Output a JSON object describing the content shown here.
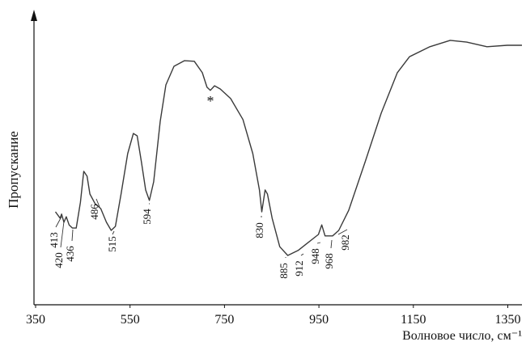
{
  "chart_data": {
    "type": "line",
    "x_label": "Волновое число, см⁻¹",
    "y_label": "Пропускание",
    "xlim": [
      350,
      1380
    ],
    "xticks": [
      350,
      550,
      750,
      950,
      1150,
      1350
    ],
    "ylim": [
      0,
      100
    ],
    "color": "#3a3a3a",
    "x": [
      392,
      402,
      405,
      410,
      415,
      421,
      428,
      436,
      445,
      452,
      459,
      465,
      476,
      488,
      500,
      510,
      519,
      531,
      545,
      557,
      565,
      574,
      583,
      591,
      600,
      614,
      626,
      643,
      665,
      686,
      703,
      713,
      720,
      729,
      741,
      763,
      789,
      810,
      824,
      829,
      836,
      841,
      851,
      867,
      884,
      906,
      927,
      949,
      956,
      963,
      979,
      992,
      1013,
      1048,
      1082,
      1116,
      1142,
      1185,
      1228,
      1263,
      1306,
      1349,
      1380
    ],
    "values": [
      31.4,
      29.2,
      30.6,
      27.8,
      29.7,
      26.9,
      25.8,
      25.8,
      34.7,
      45.3,
      43.6,
      37.5,
      34.2,
      32.5,
      27.8,
      25.0,
      26.4,
      37.5,
      51.4,
      58.3,
      57.5,
      48.6,
      38.9,
      35.3,
      41.7,
      62.5,
      75.0,
      81.4,
      83.3,
      83.1,
      79.2,
      74.2,
      73.1,
      74.7,
      73.6,
      70.3,
      63.1,
      51.4,
      38.9,
      31.4,
      38.9,
      37.5,
      29.2,
      19.4,
      16.4,
      18.1,
      20.8,
      23.6,
      26.9,
      23.1,
      23.1,
      25.0,
      31.9,
      48.6,
      65.3,
      79.2,
      84.7,
      88.1,
      90.3,
      89.7,
      88.1,
      88.6,
      88.6
    ],
    "peak_labels": [
      413,
      420,
      436,
      486,
      515,
      594,
      830,
      885,
      912,
      948,
      968,
      982
    ],
    "marker_note": "*"
  }
}
